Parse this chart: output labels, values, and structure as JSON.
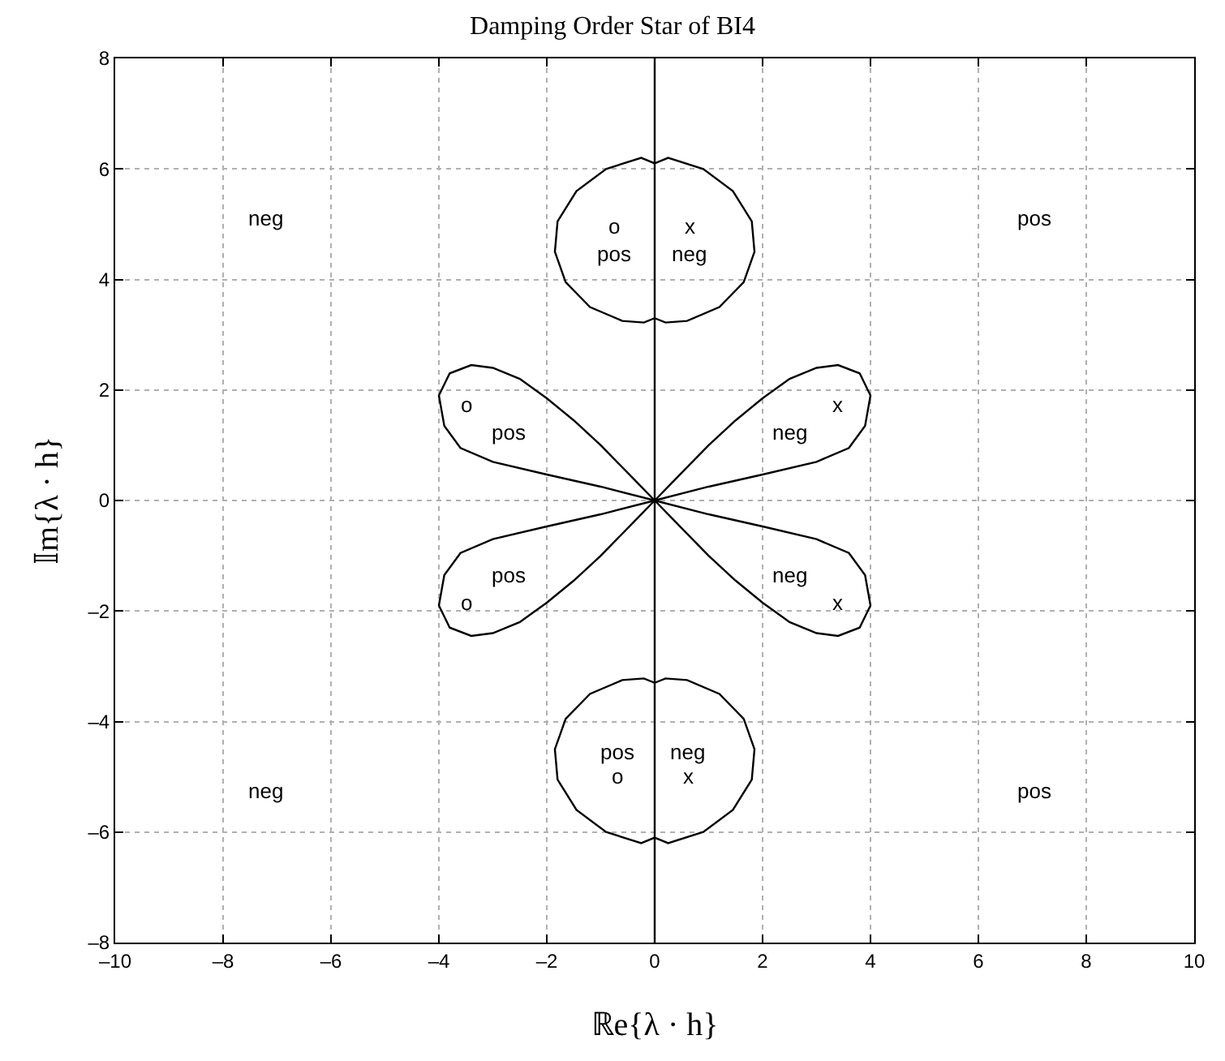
{
  "chart_data": {
    "type": "line",
    "title": "Damping Order Star of BI4",
    "xlabel": "ℝe{λ · h}",
    "ylabel": "𝕀m{λ · h}",
    "xlim": [
      -10,
      10
    ],
    "ylim": [
      -8,
      8
    ],
    "xticks": [
      {
        "value": -10,
        "label": "–10"
      },
      {
        "value": -8,
        "label": "–8"
      },
      {
        "value": -6,
        "label": "–6"
      },
      {
        "value": -4,
        "label": "–4"
      },
      {
        "value": -2,
        "label": "–2"
      },
      0,
      2,
      4,
      6,
      8,
      10
    ],
    "yticks": [
      {
        "value": -8,
        "label": "–8"
      },
      {
        "value": -6,
        "label": "–6"
      },
      {
        "value": -4,
        "label": "–4"
      },
      {
        "value": -2,
        "label": "–2"
      },
      0,
      2,
      4,
      6,
      8
    ],
    "grid": true,
    "ref_lines": [
      {
        "axis": "x",
        "value": 0,
        "color": "#000000",
        "line_style": "solid"
      }
    ],
    "annotations": [
      "neg",
      "pos",
      "neg",
      "pos",
      "o",
      "pos",
      "x",
      "neg",
      "pos",
      "o",
      "neg",
      "x",
      "o",
      "pos",
      "x",
      "neg",
      "pos",
      "o",
      "neg",
      "x"
    ]
  }
}
